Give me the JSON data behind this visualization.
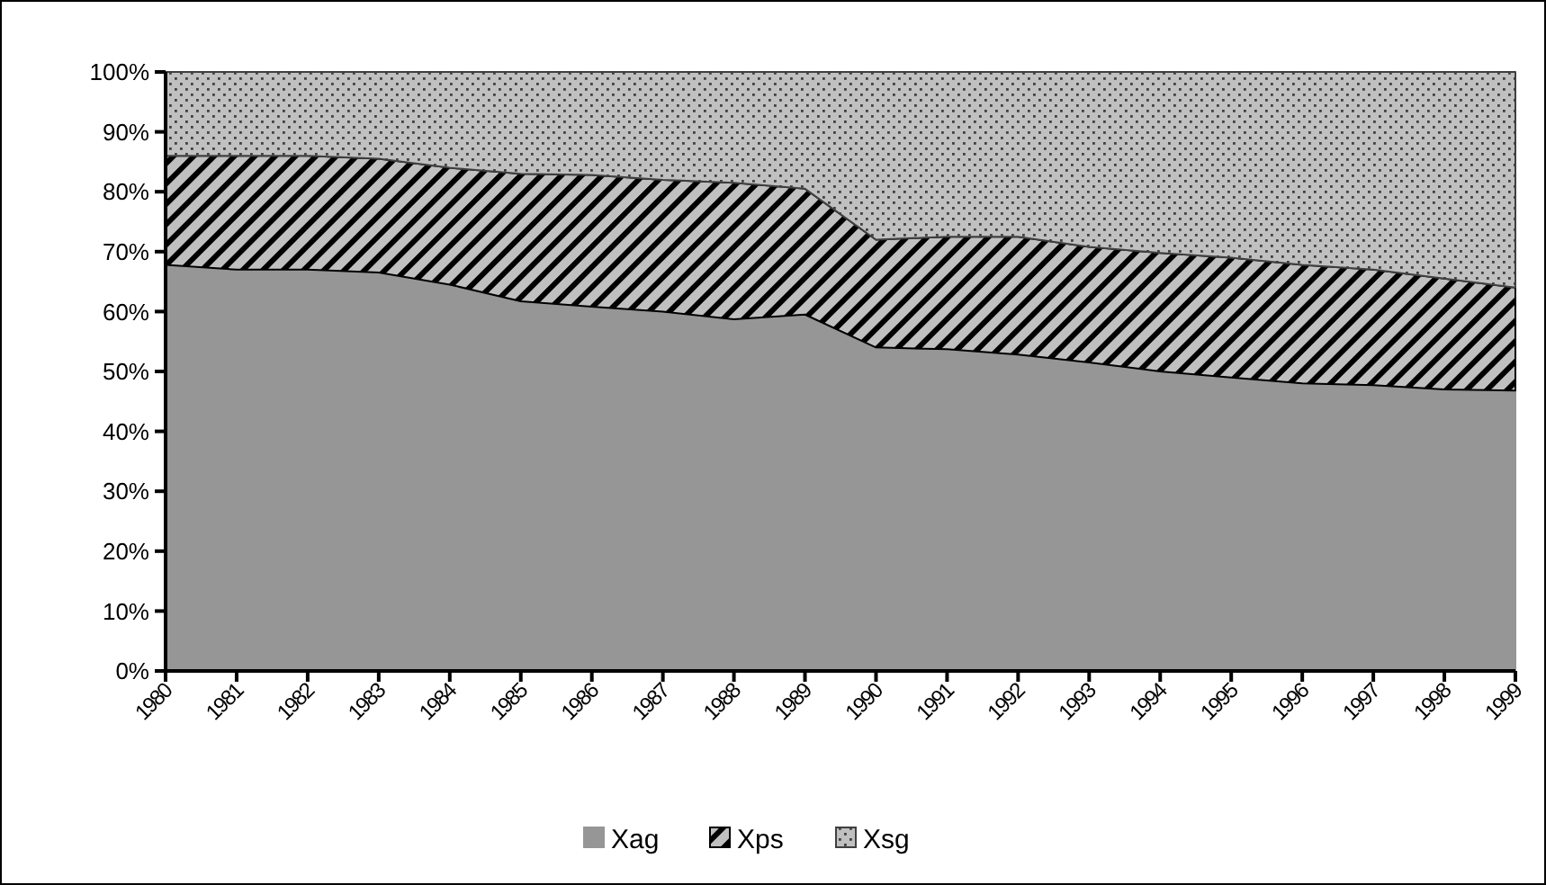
{
  "chart_data": {
    "type": "area",
    "stacked": true,
    "categories": [
      "1980",
      "1981",
      "1982",
      "1983",
      "1984",
      "1985",
      "1986",
      "1987",
      "1988",
      "1989",
      "1990",
      "1991",
      "1992",
      "1993",
      "1994",
      "1995",
      "1996",
      "1997",
      "1998",
      "1999"
    ],
    "series": [
      {
        "name": "Xag",
        "color": "#969696",
        "values": [
          67.8,
          67,
          67,
          66.5,
          64.5,
          61.7,
          60.8,
          60,
          58.7,
          59.5,
          54,
          53.7,
          52.8,
          51.5,
          50,
          49,
          48,
          47.7,
          47,
          46.8
        ]
      },
      {
        "name": "Xps",
        "color": "#000000",
        "values": [
          18.2,
          19,
          19,
          19,
          19.5,
          21.3,
          22,
          22,
          22.8,
          21,
          18,
          18.8,
          19.7,
          19.3,
          19.8,
          20,
          19.8,
          19.3,
          18.5,
          17.2
        ]
      },
      {
        "name": "Xsg",
        "color": "#404040",
        "values": [
          14,
          14,
          14,
          14.5,
          16,
          17,
          17.2,
          18,
          18.5,
          19.5,
          28,
          27.5,
          27.5,
          29.2,
          30.2,
          31,
          32.2,
          33,
          34.5,
          36
        ]
      }
    ],
    "ylim": [
      0,
      100
    ],
    "yticks": [
      {
        "value": 0,
        "label": "0%"
      },
      {
        "value": 10,
        "label": "10%"
      },
      {
        "value": 20,
        "label": "20%"
      },
      {
        "value": 30,
        "label": "30%"
      },
      {
        "value": 40,
        "label": "40%"
      },
      {
        "value": 50,
        "label": "50%"
      },
      {
        "value": 60,
        "label": "60%"
      },
      {
        "value": 70,
        "label": "70%"
      },
      {
        "value": 80,
        "label": "80%"
      },
      {
        "value": 90,
        "label": "90%"
      },
      {
        "value": 100,
        "label": "100%"
      }
    ],
    "legend": "bottom"
  }
}
